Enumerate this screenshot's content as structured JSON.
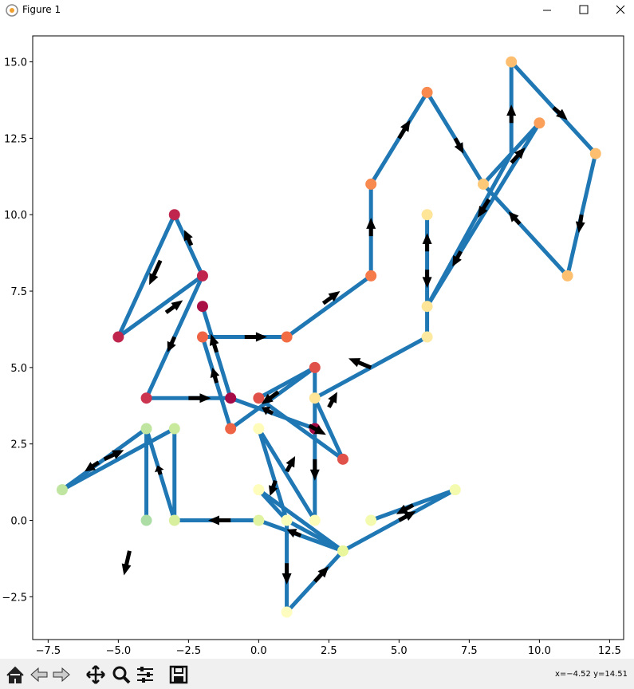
{
  "window": {
    "title": "Figure 1",
    "status": "x=−4.52 y=14.51"
  },
  "chart_data": {
    "type": "quiver-path",
    "xlim": [
      -8.05,
      13.0
    ],
    "ylim": [
      -3.9,
      15.85
    ],
    "xticks": [
      {
        "value": -7.5,
        "label": "−7.5"
      },
      {
        "value": -5.0,
        "label": "−5.0"
      },
      {
        "value": -2.5,
        "label": "−2.5"
      },
      {
        "value": 0.0,
        "label": "0.0"
      },
      2.5,
      {
        "value": 5.0,
        "label": "5.0"
      },
      7.5,
      {
        "value": 10.0,
        "label": "10.0"
      },
      12.5
    ],
    "yticks": [
      {
        "value": -2.5,
        "label": "−2.5"
      },
      {
        "value": 0.0,
        "label": "0.0"
      },
      2.5,
      {
        "value": 5.0,
        "label": "5.0"
      },
      7.5,
      {
        "value": 10.0,
        "label": "10.0"
      },
      12.5,
      {
        "value": 15.0,
        "label": "15.0"
      }
    ],
    "line_color": "#1f77b4",
    "arrow_color": "#000000",
    "segments": [
      [
        -3,
        10,
        -5,
        6
      ],
      [
        -5,
        6,
        -2,
        8
      ],
      [
        -2,
        8,
        -3,
        10
      ],
      [
        -2,
        8,
        -4,
        4
      ],
      [
        -4,
        4,
        -1,
        4
      ],
      [
        -1,
        4,
        -2,
        7
      ],
      [
        -2,
        6,
        -1,
        3
      ],
      [
        -1,
        3,
        2,
        5
      ],
      [
        2,
        5,
        0,
        4
      ],
      [
        -1,
        4,
        2,
        3
      ],
      [
        0,
        4,
        3,
        2
      ],
      [
        3,
        2,
        2,
        4
      ],
      [
        -2,
        6,
        1,
        6
      ],
      [
        1,
        6,
        4,
        8
      ],
      [
        4,
        8,
        4,
        11
      ],
      [
        4,
        11,
        6,
        14
      ],
      [
        6,
        14,
        8,
        11
      ],
      [
        8,
        11,
        11,
        8
      ],
      [
        11,
        8,
        12,
        12
      ],
      [
        12,
        12,
        9,
        15
      ],
      [
        9,
        15,
        9,
        12
      ],
      [
        9,
        12,
        6,
        7
      ],
      [
        6,
        7,
        10,
        13
      ],
      [
        10,
        13,
        8,
        11
      ],
      [
        6,
        10,
        6,
        7
      ],
      [
        6,
        7,
        6,
        6
      ],
      [
        6,
        6,
        2,
        4
      ],
      [
        2,
        5,
        2,
        0
      ],
      [
        2,
        0,
        0,
        3
      ],
      [
        0,
        3,
        1,
        0
      ],
      [
        1,
        0,
        0,
        1
      ],
      [
        0,
        1,
        3,
        -1
      ],
      [
        3,
        -1,
        1,
        0
      ],
      [
        1,
        0,
        1,
        -3
      ],
      [
        1,
        -3,
        3,
        -1
      ],
      [
        3,
        -1,
        7,
        1
      ],
      [
        7,
        1,
        4,
        0
      ],
      [
        0,
        0,
        3,
        -1
      ],
      [
        0,
        0,
        -3,
        0
      ],
      [
        -3,
        0,
        -4,
        3
      ],
      [
        -4,
        3,
        -4,
        0
      ],
      [
        -3,
        3,
        -3,
        0
      ],
      [
        -7,
        1,
        -4,
        3
      ],
      [
        -7,
        1,
        -3,
        3
      ]
    ],
    "arrows": [
      [
        -3.5,
        8.5,
        -0.4,
        -0.8
      ],
      [
        -3.3,
        6.8,
        0.6,
        0.4
      ],
      [
        -2.4,
        9.0,
        -0.25,
        0.5
      ],
      [
        -3.0,
        6.0,
        -0.25,
        -0.5
      ],
      [
        -2.5,
        4.0,
        0.8,
        0
      ],
      [
        -1.5,
        5.5,
        -0.2,
        0.6
      ],
      [
        -1.5,
        4.5,
        -0.15,
        0.5
      ],
      [
        -0.5,
        6.0,
        0.8,
        0
      ],
      [
        2.3,
        7.1,
        0.6,
        0.4
      ],
      [
        4,
        9.3,
        0,
        0.6
      ],
      [
        5,
        12.5,
        0.4,
        0.6
      ],
      [
        7,
        12.5,
        0.3,
        -0.5
      ],
      [
        9.3,
        9.7,
        -0.4,
        0.4
      ],
      [
        11.5,
        10,
        -0.1,
        -0.6
      ],
      [
        10.5,
        13.5,
        0.5,
        -0.4
      ],
      [
        9,
        13,
        0,
        0.6
      ],
      [
        9.0,
        11.7,
        0.5,
        0.5
      ],
      [
        8.2,
        10.5,
        -0.4,
        -0.6
      ],
      [
        7.2,
        8.8,
        -0.3,
        -0.5
      ],
      [
        6,
        8.8,
        0,
        0.6
      ],
      [
        6,
        8.2,
        0,
        -0.6
      ],
      [
        4,
        5,
        -0.8,
        0.3
      ],
      [
        0.7,
        4.2,
        -0.6,
        -0.4
      ],
      [
        2.5,
        3.7,
        0.3,
        0.5
      ],
      [
        1.8,
        3.1,
        0.6,
        -0.3
      ],
      [
        0.5,
        3.5,
        -0.4,
        0.2
      ],
      [
        2,
        2,
        0,
        -0.7
      ],
      [
        0.6,
        1.3,
        -0.2,
        -0.5
      ],
      [
        1,
        1.6,
        0.3,
        0.5
      ],
      [
        1,
        -1.4,
        0,
        -0.7
      ],
      [
        2,
        -2,
        0.5,
        0.5
      ],
      [
        1.5,
        -0.5,
        -0.5,
        0.2
      ],
      [
        5,
        0,
        0.6,
        0.3
      ],
      [
        5.5,
        0.5,
        -0.6,
        -0.3
      ],
      [
        -1,
        0,
        -0.8,
        0
      ],
      [
        -3.5,
        1.5,
        -0.1,
        0.3
      ],
      [
        -5.5,
        2,
        0.7,
        0.3
      ],
      [
        -5.7,
        1.9,
        -0.5,
        -0.3
      ],
      [
        -4.6,
        -1,
        -0.2,
        -0.8
      ]
    ],
    "points": {
      "x": [
        -3,
        -2,
        -2,
        -5,
        -4,
        -1,
        2,
        -2,
        -1,
        2,
        3,
        0,
        1,
        4,
        4,
        6,
        8,
        9,
        10,
        12,
        11,
        6,
        6,
        6,
        2,
        0,
        0,
        1,
        2,
        1,
        3,
        4,
        7,
        0,
        -3,
        -3,
        -4,
        -7,
        -4
      ],
      "y": [
        10,
        8,
        7,
        6,
        4,
        4,
        3,
        6,
        3,
        5,
        2,
        4,
        6,
        8,
        11,
        14,
        11,
        15,
        13,
        12,
        8,
        10,
        7,
        6,
        4,
        3,
        1,
        0,
        0,
        -3,
        -1,
        0,
        1,
        0,
        0,
        3,
        3,
        1,
        0
      ],
      "colors": [
        "#c0264d",
        "#c0264d",
        "#a90e45",
        "#c0264d",
        "#cc3550",
        "#a50b46",
        "#a50b46",
        "#ee6445",
        "#ee6445",
        "#e0514a",
        "#e0514a",
        "#e0514a",
        "#f26d43",
        "#f67b4a",
        "#f88a50",
        "#f88a50",
        "#fdc979",
        "#fdbf6f",
        "#fba05b",
        "#fdbf6f",
        "#fdc070",
        "#fee597",
        "#fee597",
        "#fee9a0",
        "#fee597",
        "#fffcba",
        "#fefdbb",
        "#fbfdb9",
        "#fbfdb8",
        "#fffcc0",
        "#e9f69b",
        "#f4faae",
        "#f4faae",
        "#e0f3a0",
        "#d8ef9e",
        "#c9e99d",
        "#bfe5a0",
        "#bfe5a0",
        "#abdda4"
      ]
    }
  }
}
